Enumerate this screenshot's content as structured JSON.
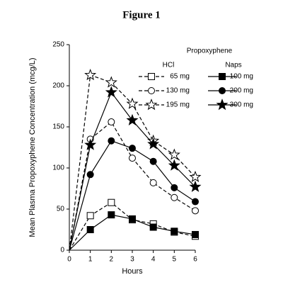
{
  "chart_data": {
    "type": "line",
    "title": "Figure 1",
    "x_label": "Hours",
    "y_label": "Mean Plasma Propoxyphene Concentration (mcg/L)",
    "legend_title": "Propoxyphene",
    "legend_columns": [
      "HCl",
      "Naps"
    ],
    "x": [
      0,
      1,
      2,
      3,
      4,
      5,
      6
    ],
    "xlim": [
      0,
      6
    ],
    "xticks": [
      0,
      1,
      2,
      3,
      4,
      5,
      6
    ],
    "ylim": [
      0,
      250
    ],
    "yticks": [
      0,
      50,
      100,
      150,
      200,
      250
    ],
    "series": [
      {
        "name": "65 mg",
        "legend_column": 0,
        "marker": "square",
        "filled": false,
        "dashed": true,
        "color": "#000000",
        "values": [
          0,
          42,
          58,
          37,
          32,
          22,
          17
        ]
      },
      {
        "name": "130 mg",
        "legend_column": 0,
        "marker": "circle",
        "filled": false,
        "dashed": true,
        "color": "#000000",
        "values": [
          0,
          135,
          156,
          112,
          82,
          64,
          48
        ]
      },
      {
        "name": "195 mg",
        "legend_column": 0,
        "marker": "star",
        "filled": false,
        "dashed": true,
        "color": "#000000",
        "values": [
          0,
          213,
          204,
          178,
          133,
          116,
          89
        ]
      },
      {
        "name": "100 mg",
        "legend_column": 1,
        "marker": "square",
        "filled": true,
        "dashed": false,
        "color": "#000000",
        "values": [
          0,
          25,
          43,
          38,
          28,
          23,
          19
        ]
      },
      {
        "name": "200 mg",
        "legend_column": 1,
        "marker": "circle",
        "filled": true,
        "dashed": false,
        "color": "#000000",
        "values": [
          0,
          92,
          133,
          124,
          108,
          76,
          59
        ]
      },
      {
        "name": "300 mg",
        "legend_column": 1,
        "marker": "star",
        "filled": true,
        "dashed": false,
        "color": "#000000",
        "values": [
          0,
          128,
          192,
          158,
          129,
          103,
          77
        ]
      }
    ]
  }
}
